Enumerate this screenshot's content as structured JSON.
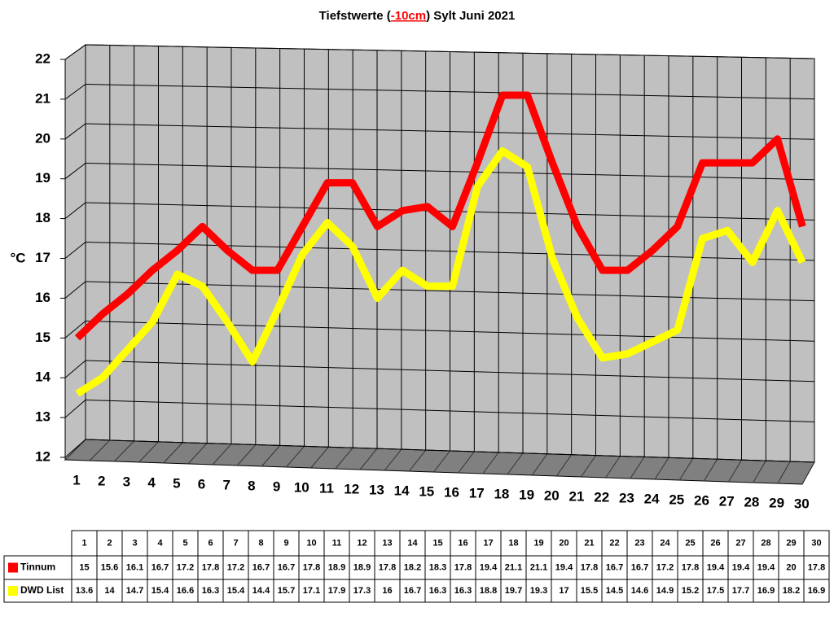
{
  "chart_data": {
    "type": "line",
    "title": [
      "Tiefstwerte (",
      "-10cm",
      ") Sylt Juni 2021"
    ],
    "y_label": "°C",
    "categories": [
      "1",
      "2",
      "3",
      "4",
      "5",
      "6",
      "7",
      "8",
      "9",
      "10",
      "11",
      "12",
      "13",
      "14",
      "15",
      "16",
      "17",
      "18",
      "19",
      "20",
      "21",
      "22",
      "23",
      "24",
      "25",
      "26",
      "27",
      "28",
      "29",
      "30"
    ],
    "ylim": [
      12,
      22
    ],
    "yticks": [
      12,
      13,
      14,
      15,
      16,
      17,
      18,
      19,
      20,
      21,
      22
    ],
    "grid": true,
    "series": [
      {
        "name": "Tinnum",
        "color": "#ff0000",
        "values": [
          15,
          15.6,
          16.1,
          16.7,
          17.2,
          17.8,
          17.2,
          16.7,
          16.7,
          17.8,
          18.9,
          18.9,
          17.8,
          18.2,
          18.3,
          17.8,
          19.4,
          21.1,
          21.1,
          19.4,
          17.8,
          16.7,
          16.7,
          17.2,
          17.8,
          19.4,
          19.4,
          19.4,
          20,
          17.8
        ]
      },
      {
        "name": "DWD List",
        "color": "#ffff00",
        "values": [
          13.6,
          14,
          14.7,
          15.4,
          16.6,
          16.3,
          15.4,
          14.4,
          15.7,
          17.1,
          17.9,
          17.3,
          16,
          16.7,
          16.3,
          16.3,
          18.8,
          19.7,
          19.3,
          17,
          15.5,
          14.5,
          14.6,
          14.9,
          15.2,
          17.5,
          17.7,
          16.9,
          18.2,
          16.9
        ]
      }
    ]
  }
}
